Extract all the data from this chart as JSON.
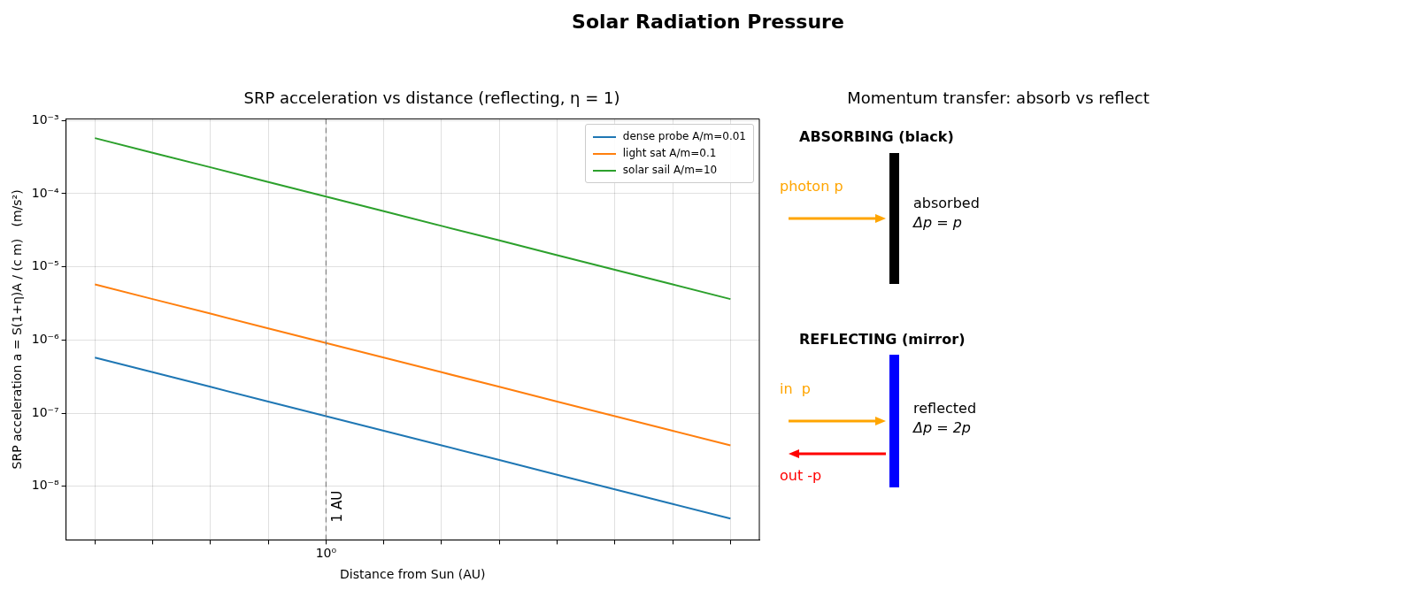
{
  "chart_data": [
    {
      "type": "line",
      "title": "Solar Radiation Pressure",
      "subtitle": "SRP acceleration vs distance (reflecting, η = 1)",
      "xlabel": "Distance from Sun (AU)",
      "ylabel": "SRP acceleration a = S(1+η)A / (c m)   (m/s²)",
      "log": "y",
      "grid": true,
      "legend": "top right",
      "marker": "none",
      "line_style": "solid",
      "categories": [
        null,
        null,
        null,
        null,
        "10⁰",
        null,
        null,
        null,
        null,
        null,
        null,
        null
      ],
      "series": [
        {
          "name": "dense probe A/m=0.01",
          "color": "#1f77b4",
          "values": [
            5.74e-07,
            3.62e-07,
            2.29e-07,
            1.44e-07,
            9.1e-08,
            5.74e-08,
            3.62e-08,
            2.29e-08,
            1.44e-08,
            9.1e-09,
            5.74e-09,
            3.62e-09
          ]
        },
        {
          "name": "light sat A/m=0.1",
          "color": "#ff7f0e",
          "values": [
            5.74e-06,
            3.62e-06,
            2.29e-06,
            1.44e-06,
            9.1e-07,
            5.74e-07,
            3.62e-07,
            2.29e-07,
            1.44e-07,
            9.1e-08,
            5.74e-08,
            3.62e-08
          ]
        },
        {
          "name": "solar sail A/m=10",
          "color": "#2ca02c",
          "values": [
            0.000574,
            0.000362,
            0.000229,
            0.000144,
            9.1e-05,
            5.74e-05,
            3.62e-05,
            2.29e-05,
            1.44e-05,
            9.1e-06,
            5.74e-06,
            3.62e-06
          ]
        }
      ],
      "ylim": [
        1.85e-09,
        0.00105
      ],
      "yticks": [
        {
          "value": 1e-08,
          "label": "10⁻⁸"
        },
        {
          "value": 1e-07,
          "label": "10⁻⁷"
        },
        {
          "value": 1e-06,
          "label": "10⁻⁶"
        },
        {
          "value": 1e-05,
          "label": "10⁻⁵"
        },
        {
          "value": 0.0001,
          "label": "10⁻⁴"
        },
        {
          "value": 0.001,
          "label": "10⁻³"
        }
      ],
      "ref_lines": [
        {
          "axis": "x",
          "value": "10⁰",
          "label": "1 AU",
          "color": "#808080",
          "line_style": "dashed"
        }
      ]
    },
    {
      "type": "other",
      "title": "Momentum transfer: absorb vs reflect",
      "annotations": [
        "ABSORBING (black)",
        "photon p",
        "absorbed",
        "Δp = p",
        "REFLECTING (mirror)",
        "in  p",
        "reflected",
        "Δp = 2p",
        "out -p"
      ]
    }
  ]
}
